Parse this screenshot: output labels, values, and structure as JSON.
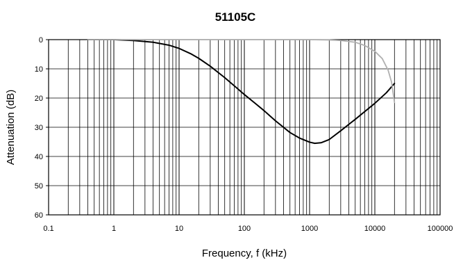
{
  "chart_data": {
    "type": "line",
    "title": "51105C",
    "xlabel": "Frequency, f (kHz)",
    "ylabel": "Attenuation (dB)",
    "x_scale": "log",
    "xlim": [
      0.1,
      100000
    ],
    "ylim": [
      0,
      60
    ],
    "y_inverted": true,
    "grid": true,
    "legend": "none",
    "x_ticks": [
      0.1,
      1,
      10,
      100,
      1000,
      10000,
      100000
    ],
    "x_tick_labels": [
      "0.1",
      "1",
      "10",
      "100",
      "1000",
      "10000",
      "100000"
    ],
    "y_ticks": [
      0,
      10,
      20,
      30,
      40,
      50,
      60
    ],
    "y_tick_labels": [
      "0",
      "10",
      "20",
      "30",
      "40",
      "50",
      "60"
    ],
    "series": [
      {
        "color": "#000000",
        "points": [
          [
            0.4,
            0
          ],
          [
            1,
            0
          ],
          [
            2,
            0.3
          ],
          [
            4,
            0.9
          ],
          [
            7,
            1.9
          ],
          [
            10,
            3
          ],
          [
            15,
            4.8
          ],
          [
            20,
            6.4
          ],
          [
            30,
            9.1
          ],
          [
            50,
            13
          ],
          [
            70,
            15.8
          ],
          [
            100,
            18.8
          ],
          [
            150,
            22
          ],
          [
            200,
            24.3
          ],
          [
            300,
            27.8
          ],
          [
            500,
            31.8
          ],
          [
            700,
            33.7
          ],
          [
            1000,
            35.1
          ],
          [
            1200,
            35.5
          ],
          [
            1500,
            35.3
          ],
          [
            2000,
            34.2
          ],
          [
            3000,
            31.2
          ],
          [
            5000,
            27.3
          ],
          [
            10000,
            21.8
          ],
          [
            15000,
            18.2
          ],
          [
            20000,
            15
          ]
        ]
      },
      {
        "color": "#b0b0b0",
        "points": [
          [
            0.4,
            0
          ],
          [
            1000,
            0
          ],
          [
            2000,
            0.1
          ],
          [
            3000,
            0.3
          ],
          [
            5000,
            0.9
          ],
          [
            7000,
            2
          ],
          [
            10000,
            4
          ],
          [
            13000,
            6.5
          ],
          [
            16000,
            10.5
          ],
          [
            18000,
            14.5
          ],
          [
            20000,
            21.5
          ]
        ]
      }
    ]
  }
}
